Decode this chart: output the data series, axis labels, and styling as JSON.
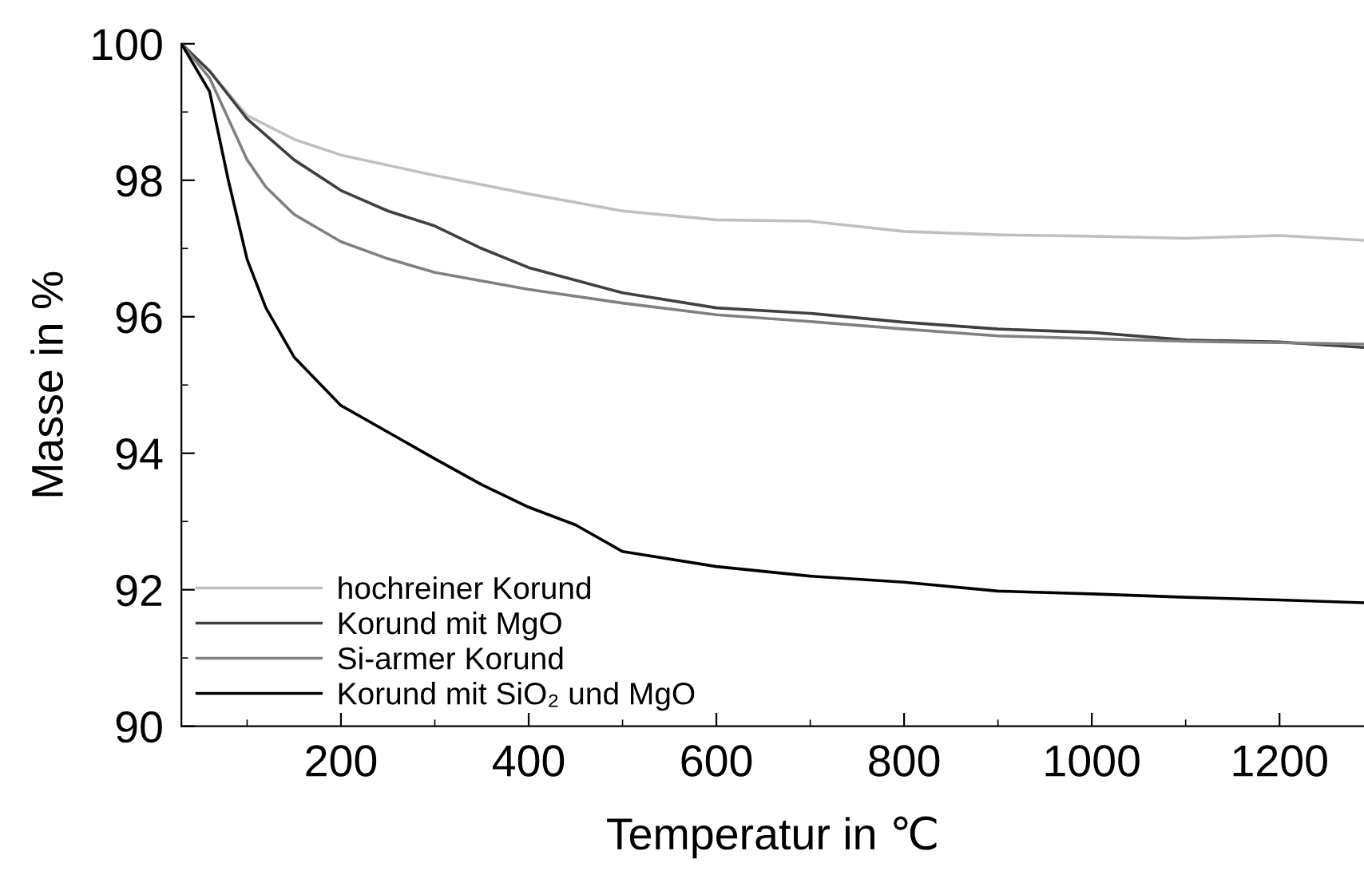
{
  "chart_data": {
    "type": "line",
    "xlabel": "Temperatur in ℃",
    "ylabel": "Masse in %",
    "xlim": [
      30,
      1290
    ],
    "ylim": [
      90,
      100
    ],
    "xticks": [
      {
        "value": 100,
        "label": null
      },
      200,
      {
        "value": 300,
        "label": null
      },
      400,
      {
        "value": 500,
        "label": null
      },
      600,
      {
        "value": 700,
        "label": null
      },
      800,
      {
        "value": 900,
        "label": null
      },
      1000,
      {
        "value": 1100,
        "label": null
      },
      1200
    ],
    "yticks": [
      90,
      {
        "value": 91,
        "label": null
      },
      92,
      {
        "value": 93,
        "label": null
      },
      94,
      {
        "value": 95,
        "label": null
      },
      96,
      {
        "value": 97,
        "label": null
      },
      98,
      {
        "value": 99,
        "label": null
      },
      100
    ],
    "grid": false,
    "legend": "bottom left",
    "marker": "none",
    "line_style": "solid",
    "series": [
      {
        "name": "hochreiner Korund",
        "color": "#c0c0c0",
        "x": [
          30,
          60,
          100,
          150,
          200,
          300,
          400,
          500,
          600,
          700,
          800,
          900,
          1000,
          1100,
          1200,
          1290
        ],
        "values": [
          100,
          99.6,
          98.95,
          98.6,
          98.37,
          98.07,
          97.8,
          97.55,
          97.42,
          97.4,
          97.25,
          97.2,
          97.18,
          97.15,
          97.19,
          97.12
        ]
      },
      {
        "name": "Korund mit MgO",
        "color": "#404040",
        "x": [
          30,
          60,
          100,
          150,
          200,
          250,
          300,
          350,
          400,
          500,
          600,
          700,
          800,
          900,
          1000,
          1100,
          1200,
          1290
        ],
        "values": [
          100,
          99.6,
          98.9,
          98.3,
          97.85,
          97.55,
          97.33,
          97.0,
          96.72,
          96.35,
          96.13,
          96.05,
          95.92,
          95.82,
          95.77,
          95.66,
          95.63,
          95.55
        ]
      },
      {
        "name": "Si-armer Korund",
        "color": "#808080",
        "x": [
          30,
          60,
          100,
          120,
          150,
          200,
          250,
          300,
          400,
          500,
          600,
          700,
          800,
          900,
          1000,
          1100,
          1200,
          1290
        ],
        "values": [
          100,
          99.5,
          98.3,
          97.9,
          97.5,
          97.1,
          96.85,
          96.65,
          96.4,
          96.2,
          96.03,
          95.93,
          95.82,
          95.72,
          95.68,
          95.64,
          95.62,
          95.6
        ]
      },
      {
        "name": "Korund mit SiO₂ und MgO",
        "color": "#000000",
        "x": [
          30,
          60,
          80,
          100,
          120,
          150,
          200,
          250,
          300,
          350,
          400,
          450,
          500,
          600,
          700,
          800,
          900,
          1000,
          1100,
          1200,
          1290
        ],
        "values": [
          100,
          99.3,
          98.0,
          96.84,
          96.13,
          95.41,
          94.7,
          94.31,
          93.92,
          93.54,
          93.21,
          92.95,
          92.56,
          92.34,
          92.2,
          92.11,
          91.98,
          91.94,
          91.89,
          91.85,
          91.81
        ]
      }
    ]
  }
}
